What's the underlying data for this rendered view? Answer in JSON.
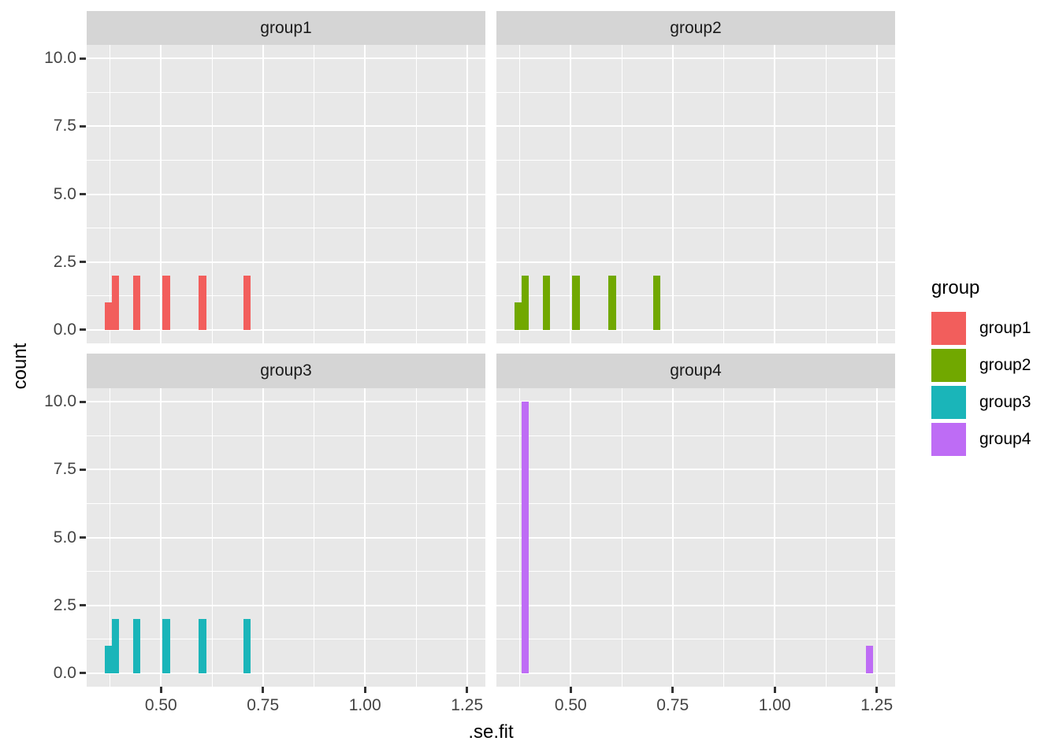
{
  "figure": {
    "background": "#FFFFFF",
    "panel_bg": "#E8E8E8",
    "strip_bg": "#D5D5D5",
    "strip_text_color": "#1A1A1A",
    "grid_color": "#FFFFFF",
    "tick_mark_color": "#333333",
    "tick_label_color": "#444444",
    "title_color": "#000000"
  },
  "chart_data": {
    "type": "bar",
    "variant": "faceted histogram (facet_wrap, 2x2)",
    "title": "",
    "xlabel": ".se.fit",
    "ylabel": "count",
    "x_domain": [
      0.318,
      1.295
    ],
    "y_domain": [
      -0.5,
      10.5
    ],
    "x_ticks": [
      0.5,
      0.75,
      1.0,
      1.25
    ],
    "x_tick_labels": [
      "0.50",
      "0.75",
      "1.00",
      "1.25"
    ],
    "x_minor_gridlines": [
      0.375,
      0.625,
      0.875,
      1.125
    ],
    "y_ticks": [
      0,
      2.5,
      5,
      7.5,
      10
    ],
    "y_tick_labels": [
      "0.0",
      "2.5",
      "5.0",
      "7.5",
      "10.0"
    ],
    "y_minor_gridlines": [
      1.25,
      3.75,
      6.25,
      8.75
    ],
    "grid": "on",
    "legend": {
      "title": "group",
      "position": "right",
      "entries": [
        {
          "label": "group1",
          "color": "#F25E5C"
        },
        {
          "label": "group2",
          "color": "#71A800"
        },
        {
          "label": "group3",
          "color": "#1AB5B9"
        },
        {
          "label": "group4",
          "color": "#BE6CF5"
        }
      ]
    },
    "facets": [
      {
        "label": "group1",
        "color": "#F25E5C",
        "bars": [
          {
            "x0": 0.362,
            "x1": 0.379,
            "count": 1
          },
          {
            "x0": 0.379,
            "x1": 0.397,
            "count": 2
          },
          {
            "x0": 0.431,
            "x1": 0.449,
            "count": 2
          },
          {
            "x0": 0.504,
            "x1": 0.522,
            "count": 2
          },
          {
            "x0": 0.593,
            "x1": 0.611,
            "count": 2
          },
          {
            "x0": 0.702,
            "x1": 0.719,
            "count": 2
          }
        ]
      },
      {
        "label": "group2",
        "color": "#71A800",
        "bars": [
          {
            "x0": 0.362,
            "x1": 0.379,
            "count": 1
          },
          {
            "x0": 0.379,
            "x1": 0.397,
            "count": 2
          },
          {
            "x0": 0.431,
            "x1": 0.449,
            "count": 2
          },
          {
            "x0": 0.504,
            "x1": 0.522,
            "count": 2
          },
          {
            "x0": 0.593,
            "x1": 0.611,
            "count": 2
          },
          {
            "x0": 0.702,
            "x1": 0.719,
            "count": 2
          }
        ]
      },
      {
        "label": "group3",
        "color": "#1AB5B9",
        "bars": [
          {
            "x0": 0.362,
            "x1": 0.379,
            "count": 1
          },
          {
            "x0": 0.379,
            "x1": 0.397,
            "count": 2
          },
          {
            "x0": 0.431,
            "x1": 0.449,
            "count": 2
          },
          {
            "x0": 0.504,
            "x1": 0.522,
            "count": 2
          },
          {
            "x0": 0.593,
            "x1": 0.611,
            "count": 2
          },
          {
            "x0": 0.702,
            "x1": 0.719,
            "count": 2
          }
        ]
      },
      {
        "label": "group4",
        "color": "#BE6CF5",
        "bars": [
          {
            "x0": 0.379,
            "x1": 0.397,
            "count": 10
          },
          {
            "x0": 1.224,
            "x1": 1.242,
            "count": 1
          }
        ]
      }
    ]
  }
}
